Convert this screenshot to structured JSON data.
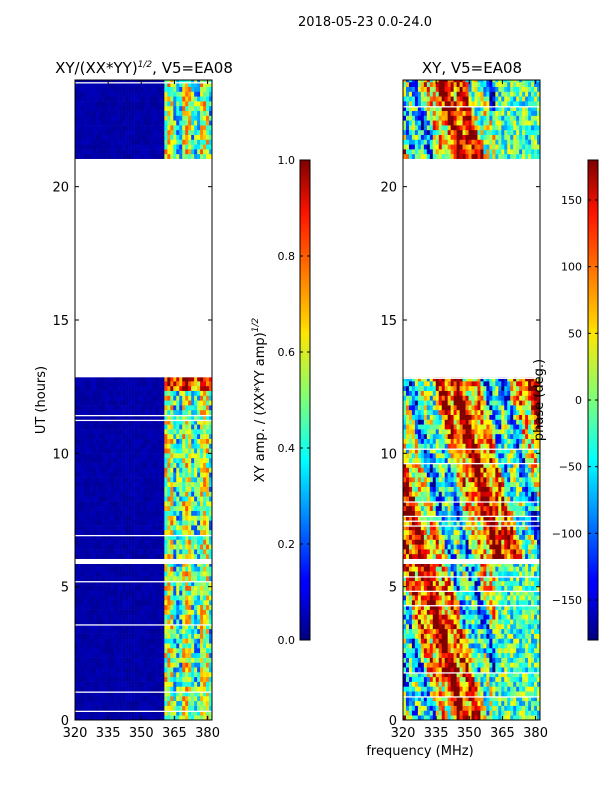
{
  "figure": {
    "suptitle": "2018-05-23 0.0-24.0",
    "xlabel": "frequency (MHz)",
    "colors": {
      "band_lo": "#00008f",
      "band_hi": "#7f0000",
      "gap": "#ffffff",
      "frame": "#000000"
    }
  },
  "chart_data": [
    {
      "id": "amp",
      "type": "heatmap",
      "title_main": "XY/(XX*YY)",
      "title_sup": "1/2",
      "title_rest": ", V5=EA08",
      "ylabel": "UT (hours)",
      "xlim": [
        320,
        382
      ],
      "ylim": [
        0,
        24
      ],
      "xticks": [
        320,
        335,
        350,
        365,
        380
      ],
      "yticks": [
        0,
        5,
        10,
        15,
        20
      ],
      "data_ranges_hours": [
        [
          0.0,
          5.85
        ],
        [
          6.05,
          12.85
        ],
        [
          21.05,
          24.0
        ]
      ],
      "colorbar": {
        "label_main": "XY amp. / (XX*YY amp)",
        "label_sup": "1/2",
        "min": 0.0,
        "max": 1.0,
        "ticks": [
          0.0,
          0.2,
          0.4,
          0.6,
          0.8,
          1.0
        ],
        "tick_labels": [
          "0.0",
          "0.2",
          "0.4",
          "0.6",
          "0.8",
          "1.0"
        ]
      }
    },
    {
      "id": "phase",
      "type": "heatmap",
      "title_main": "XY, V5=EA08",
      "xlim": [
        320,
        382
      ],
      "ylim": [
        0,
        24
      ],
      "xticks": [
        320,
        335,
        350,
        365,
        380
      ],
      "yticks": [
        0,
        5,
        10,
        15,
        20
      ],
      "data_ranges_hours": [
        [
          0.0,
          5.85
        ],
        [
          6.05,
          12.85
        ],
        [
          21.05,
          24.0
        ]
      ],
      "colorbar": {
        "label": "phase (deg.)",
        "min": -180,
        "max": 180,
        "ticks": [
          -150,
          -100,
          -50,
          0,
          50,
          100,
          150
        ],
        "tick_labels": [
          "−150",
          "−100",
          "−50",
          "0",
          "50",
          "100",
          "150"
        ]
      }
    }
  ]
}
